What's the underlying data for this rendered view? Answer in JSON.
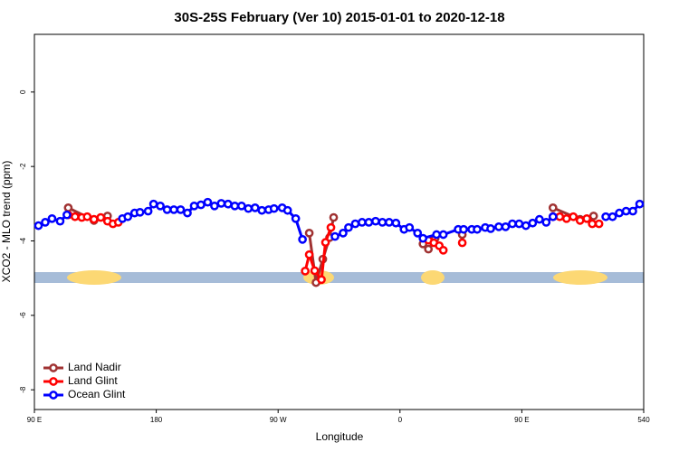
{
  "chart_data": {
    "type": "line",
    "title": "30S-25S February (Ver 10)   2015-01-01 to 2020-12-18",
    "x_label": "Longitude",
    "y_label": "XCO2 - MLO trend (ppm)",
    "xlim": [
      90,
      540
    ],
    "ylim": [
      -8.53,
      1.55
    ],
    "xticks": [
      {
        "value": 90,
        "label": "90 E"
      },
      180,
      {
        "value": 270,
        "label": "90 W"
      },
      {
        "value": 360,
        "label": "0"
      },
      {
        "value": 450,
        "label": "90 E"
      },
      540
    ],
    "yticks": [
      0,
      -2,
      -4,
      -6,
      -8
    ],
    "legend": "bottom-left",
    "series": [
      {
        "name": "Land Nadir",
        "color": "#a03232",
        "x": [
          115,
          134,
          144,
          null,
          293,
          298,
          303,
          308,
          311,
          null,
          377,
          381,
          386,
          null,
          406,
          null,
          473,
          493,
          503
        ],
        "values": [
          -3.11,
          -3.45,
          -3.33,
          null,
          -3.79,
          -5.12,
          -4.49,
          -3.91,
          -3.37,
          null,
          -4.08,
          -4.22,
          -3.93,
          null,
          -3.83,
          null,
          -3.11,
          -3.42,
          -3.33
        ]
      },
      {
        "name": "Land Glint",
        "color": "#ff0000",
        "x": [
          115,
          120,
          125,
          129,
          134,
          139,
          144,
          148,
          152,
          null,
          290,
          293,
          297,
          302,
          305,
          309,
          null,
          381,
          385,
          389,
          392,
          null,
          406,
          null,
          473,
          478,
          483,
          488,
          493,
          498,
          502,
          507
        ],
        "values": [
          -3.3,
          -3.35,
          -3.37,
          -3.35,
          -3.42,
          -3.37,
          -3.47,
          -3.54,
          -3.5,
          null,
          -4.81,
          -4.37,
          -4.8,
          -5.04,
          -4.04,
          -3.64,
          null,
          -3.98,
          -4.05,
          -4.13,
          -4.25,
          null,
          -4.05,
          null,
          -3.35,
          -3.35,
          -3.4,
          -3.35,
          -3.45,
          -3.4,
          -3.54,
          -3.54
        ]
      },
      {
        "name": "Ocean Glint",
        "color": "#0000ff",
        "x": [
          93,
          98,
          103,
          109,
          114,
          null,
          155,
          159,
          164,
          168,
          174,
          178,
          183,
          188,
          193,
          198,
          203,
          208,
          213,
          218,
          223,
          228,
          233,
          238,
          243,
          248,
          253,
          258,
          263,
          267,
          273,
          277,
          283,
          288,
          null,
          312,
          318,
          322,
          327,
          332,
          337,
          342,
          347,
          352,
          357,
          363,
          367,
          373,
          377,
          387,
          392,
          403,
          407,
          413,
          417,
          423,
          427,
          433,
          438,
          443,
          448,
          453,
          458,
          463,
          468,
          473,
          null,
          512,
          517,
          522,
          527,
          532,
          537
        ],
        "values": [
          -3.59,
          -3.5,
          -3.4,
          -3.47,
          -3.3,
          null,
          -3.4,
          -3.35,
          -3.25,
          -3.23,
          -3.2,
          -3.01,
          -3.06,
          -3.16,
          -3.16,
          -3.16,
          -3.25,
          -3.06,
          -3.03,
          -2.96,
          -3.06,
          -2.99,
          -3.01,
          -3.06,
          -3.06,
          -3.13,
          -3.11,
          -3.18,
          -3.16,
          -3.13,
          -3.11,
          -3.18,
          -3.4,
          -3.96,
          null,
          -3.88,
          -3.79,
          -3.64,
          -3.54,
          -3.5,
          -3.5,
          -3.47,
          -3.5,
          -3.5,
          -3.52,
          -3.69,
          -3.64,
          -3.79,
          -3.93,
          -3.83,
          -3.83,
          -3.69,
          -3.69,
          -3.69,
          -3.69,
          -3.64,
          -3.67,
          -3.62,
          -3.62,
          -3.54,
          -3.54,
          -3.59,
          -3.52,
          -3.42,
          -3.5,
          -3.35,
          null,
          -3.35,
          -3.35,
          -3.25,
          -3.2,
          -3.2,
          -3.01
        ]
      }
    ]
  }
}
